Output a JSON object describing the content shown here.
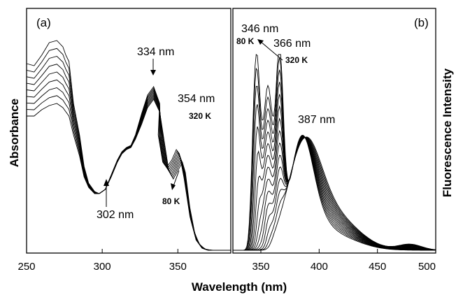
{
  "chart_data": [
    {
      "type": "line",
      "panel_label": "(a)",
      "xlabel": "Wavelength (nm)",
      "ylabel": "Absorbance",
      "xlim": [
        250,
        385
      ],
      "ylim": [
        0,
        1
      ],
      "x_ticks": [
        250,
        300,
        350
      ],
      "y_ticks_shown": false,
      "temperature_range_K": [
        80,
        320
      ],
      "series_count": 9,
      "series_x": [
        250,
        255,
        260,
        265,
        270,
        274,
        276,
        278,
        281,
        285,
        288,
        291,
        295,
        298,
        302,
        306,
        310,
        313,
        316,
        319,
        322,
        326,
        330,
        334,
        338,
        341,
        344,
        347,
        350,
        353,
        355,
        358,
        362,
        366,
        370,
        374,
        378,
        385
      ],
      "series_top": [
        0.89,
        0.88,
        0.93,
        0.99,
        1.0,
        0.97,
        0.93,
        0.9,
        0.7,
        0.55,
        0.4,
        0.32,
        0.28,
        0.27,
        0.29,
        0.36,
        0.43,
        0.47,
        0.49,
        0.5,
        0.55,
        0.65,
        0.74,
        0.78,
        0.7,
        0.55,
        0.42,
        0.4,
        0.43,
        0.48,
        0.46,
        0.35,
        0.16,
        0.05,
        0.01,
        0.0,
        0.0,
        0.0
      ],
      "series_bottom": [
        0.64,
        0.64,
        0.67,
        0.69,
        0.7,
        0.68,
        0.66,
        0.64,
        0.55,
        0.45,
        0.35,
        0.3,
        0.27,
        0.27,
        0.29,
        0.35,
        0.42,
        0.46,
        0.48,
        0.49,
        0.53,
        0.6,
        0.68,
        0.72,
        0.66,
        0.52,
        0.38,
        0.34,
        0.38,
        0.42,
        0.37,
        0.2,
        0.05,
        0.01,
        0.0,
        0.0,
        0.0,
        0.0
      ],
      "annotations": [
        {
          "text": "334 nm",
          "x": 334
        },
        {
          "text": "354 nm",
          "x": 354
        },
        {
          "text": "302 nm",
          "x": 302
        },
        {
          "text": "320 K",
          "x": 354
        },
        {
          "text": "80 K",
          "x": 350
        }
      ]
    },
    {
      "type": "line",
      "panel_label": "(b)",
      "xlabel": "",
      "ylabel": "Fluorescence Intensity",
      "xlim": [
        326,
        500
      ],
      "ylim": [
        0,
        1
      ],
      "x_ticks": [
        350,
        400,
        450,
        500
      ],
      "y_ticks_shown": false,
      "temperature_range_K": [
        80,
        320
      ],
      "series_count": 15,
      "annotations": [
        {
          "text": "346 nm",
          "x": 346
        },
        {
          "text": "80 K",
          "x": 346
        },
        {
          "text": "366 nm",
          "x": 366
        },
        {
          "text": "320 K",
          "x": 366
        },
        {
          "text": "387 nm",
          "x": 387
        }
      ]
    }
  ]
}
